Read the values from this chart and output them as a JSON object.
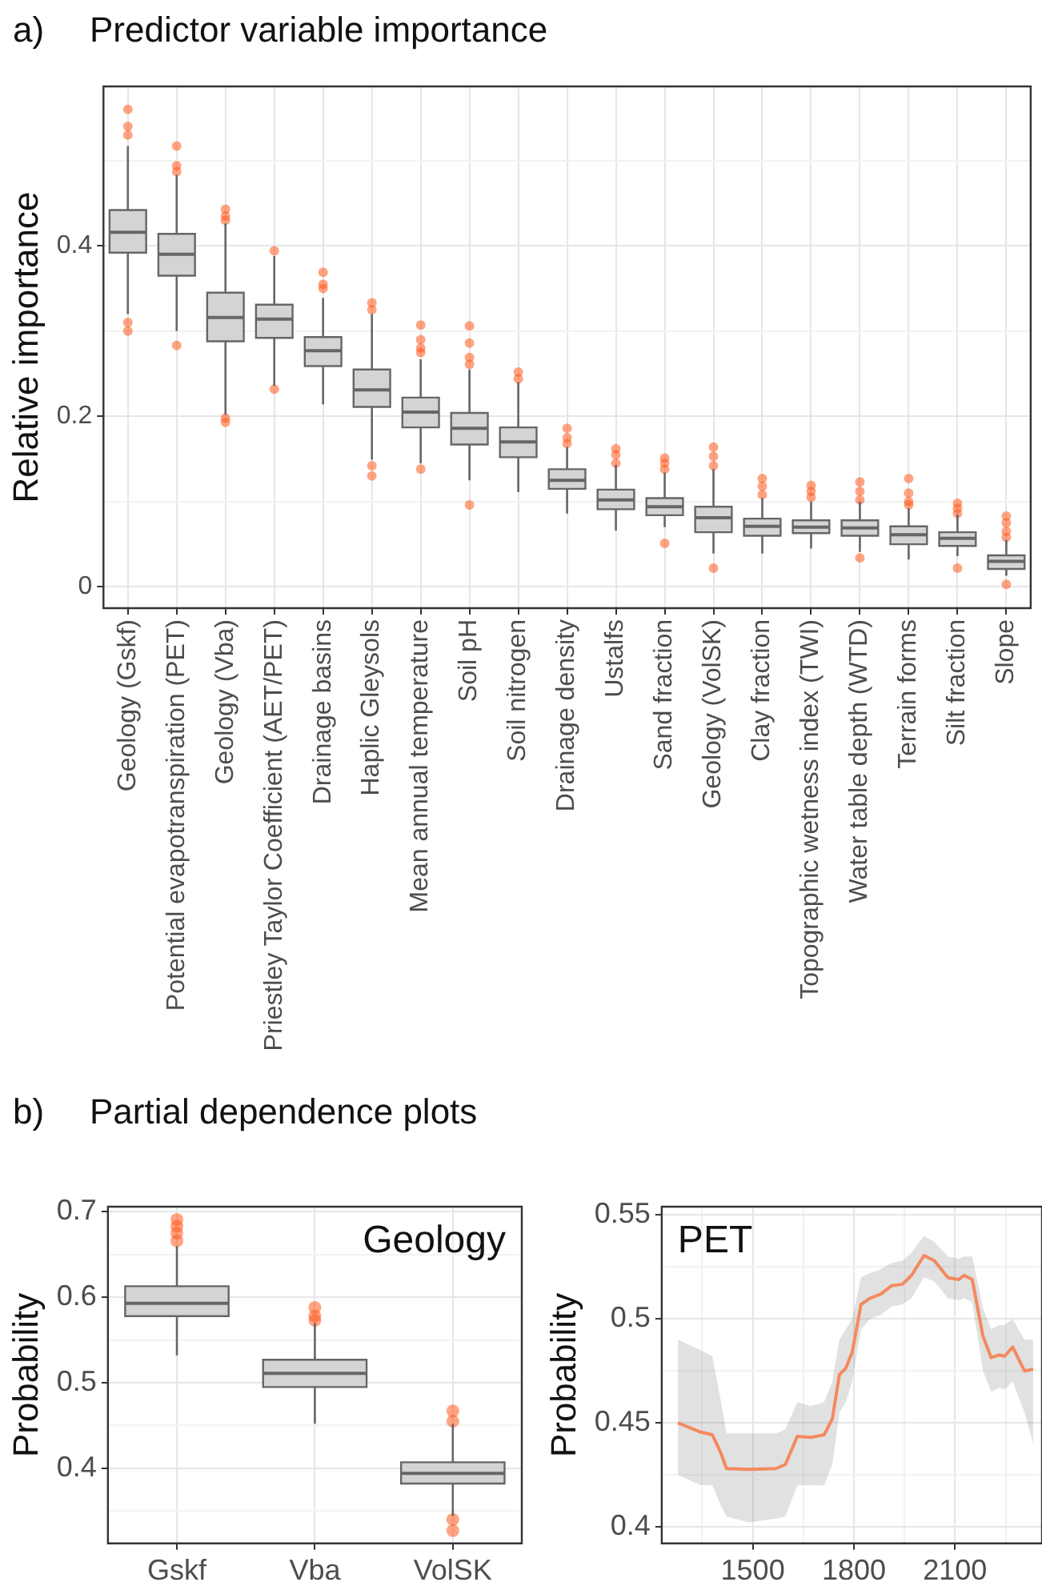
{
  "chart_data": [
    {
      "type": "box",
      "title": "Predictor variable importance",
      "annotations": [
        "a)"
      ],
      "ylabel": "Relative importance",
      "grid": true,
      "categories": [
        "Geology (Gskf)",
        "Potential evapotranspiration (PET)",
        "Geology (Vba)",
        "Priestley Taylor Coefficient (AET/PET)",
        "Drainage basins",
        "Haplic Gleysols",
        "Mean annual temperature",
        "Soil pH",
        "Soil nitrogen",
        "Drainage density",
        "Ustalfs",
        "Sand fraction",
        "Geology (VolSK)",
        "Clay fraction",
        "Topographic wetness index (TWI)",
        "Water table depth (WTD)",
        "Terrain forms",
        "Silt fraction",
        "Slope"
      ],
      "ylim": [
        -0.025,
        0.587
      ],
      "yticks": [
        0,
        {
          "value": 0.1,
          "label": null
        },
        0.2,
        {
          "value": 0.3,
          "label": null
        },
        0.4,
        {
          "value": 0.5,
          "label": null
        }
      ],
      "series": [
        {
          "color": "#d4d4d4",
          "boxes": [
            {
              "low": 0.32,
              "q1": 0.392,
              "median": 0.416,
              "q3": 0.442,
              "high": 0.517,
              "outliers": [
                0.56,
                0.54,
                0.53,
                0.31,
                0.3
              ]
            },
            {
              "low": 0.3,
              "q1": 0.365,
              "median": 0.39,
              "q3": 0.414,
              "high": 0.483,
              "outliers": [
                0.517,
                0.494,
                0.487,
                0.283
              ]
            },
            {
              "low": 0.202,
              "q1": 0.288,
              "median": 0.316,
              "q3": 0.345,
              "high": 0.426,
              "outliers": [
                0.443,
                0.435,
                0.43,
                0.198,
                0.193
              ]
            },
            {
              "low": 0.236,
              "q1": 0.292,
              "median": 0.314,
              "q3": 0.331,
              "high": 0.388,
              "outliers": [
                0.394,
                0.232
              ]
            },
            {
              "low": 0.214,
              "q1": 0.259,
              "median": 0.277,
              "q3": 0.293,
              "high": 0.339,
              "outliers": [
                0.369,
                0.355,
                0.35
              ]
            },
            {
              "low": 0.149,
              "q1": 0.211,
              "median": 0.231,
              "q3": 0.255,
              "high": 0.32,
              "outliers": [
                0.333,
                0.325,
                0.142,
                0.13
              ]
            },
            {
              "low": 0.145,
              "q1": 0.187,
              "median": 0.205,
              "q3": 0.222,
              "high": 0.267,
              "outliers": [
                0.307,
                0.29,
                0.28,
                0.275,
                0.138
              ]
            },
            {
              "low": 0.125,
              "q1": 0.167,
              "median": 0.186,
              "q3": 0.204,
              "high": 0.255,
              "outliers": [
                0.306,
                0.286,
                0.269,
                0.261,
                0.096
              ]
            },
            {
              "low": 0.111,
              "q1": 0.152,
              "median": 0.17,
              "q3": 0.187,
              "high": 0.24,
              "outliers": [
                0.252,
                0.244
              ]
            },
            {
              "low": 0.086,
              "q1": 0.115,
              "median": 0.125,
              "q3": 0.138,
              "high": 0.164,
              "outliers": [
                0.186,
                0.175,
                0.168
              ]
            },
            {
              "low": 0.066,
              "q1": 0.091,
              "median": 0.102,
              "q3": 0.114,
              "high": 0.143,
              "outliers": [
                0.162,
                0.155,
                0.145
              ]
            },
            {
              "low": 0.07,
              "q1": 0.084,
              "median": 0.094,
              "q3": 0.104,
              "high": 0.134,
              "outliers": [
                0.151,
                0.145,
                0.138,
                0.051
              ]
            },
            {
              "low": 0.039,
              "q1": 0.064,
              "median": 0.081,
              "q3": 0.094,
              "high": 0.138,
              "outliers": [
                0.164,
                0.153,
                0.142,
                0.022
              ]
            },
            {
              "low": 0.039,
              "q1": 0.06,
              "median": 0.071,
              "q3": 0.08,
              "high": 0.104,
              "outliers": [
                0.127,
                0.118,
                0.108
              ]
            },
            {
              "low": 0.045,
              "q1": 0.063,
              "median": 0.07,
              "q3": 0.078,
              "high": 0.1,
              "outliers": [
                0.119,
                0.112,
                0.105
              ]
            },
            {
              "low": 0.041,
              "q1": 0.06,
              "median": 0.069,
              "q3": 0.078,
              "high": 0.1,
              "outliers": [
                0.123,
                0.112,
                0.102,
                0.034
              ]
            },
            {
              "low": 0.032,
              "q1": 0.05,
              "median": 0.061,
              "q3": 0.071,
              "high": 0.092,
              "outliers": [
                0.127,
                0.11,
                0.1,
                0.096
              ]
            },
            {
              "low": 0.036,
              "q1": 0.048,
              "median": 0.057,
              "q3": 0.064,
              "high": 0.085,
              "outliers": [
                0.098,
                0.092,
                0.086,
                0.022
              ]
            },
            {
              "low": 0.013,
              "q1": 0.021,
              "median": 0.03,
              "q3": 0.037,
              "high": 0.055,
              "outliers": [
                0.083,
                0.075,
                0.065,
                0.058,
                0.003
              ]
            }
          ]
        }
      ]
    },
    {
      "type": "box",
      "title": "Partial dependence plots",
      "annotations": [
        "b)",
        "Geology"
      ],
      "ylabel": "Probability",
      "grid": true,
      "categories": [
        "Gskf",
        "Vba",
        "VolSK"
      ],
      "ylim": [
        0.312,
        0.706
      ],
      "yticks": [
        {
          "value": 0.35,
          "label": null
        },
        0.4,
        {
          "value": 0.45,
          "label": null
        },
        0.5,
        {
          "value": 0.55,
          "label": null
        },
        0.6,
        {
          "value": 0.65,
          "label": null
        },
        0.7
      ],
      "series": [
        {
          "color": "#d4d4d4",
          "boxes": [
            {
              "low": 0.532,
              "q1": 0.578,
              "median": 0.593,
              "q3": 0.613,
              "high": 0.66,
              "outliers": [
                0.691,
                0.683,
                0.675,
                0.666
              ]
            },
            {
              "low": 0.452,
              "q1": 0.495,
              "median": 0.511,
              "q3": 0.527,
              "high": 0.57,
              "outliers": [
                0.588,
                0.578,
                0.573
              ]
            },
            {
              "low": 0.344,
              "q1": 0.382,
              "median": 0.394,
              "q3": 0.407,
              "high": 0.452,
              "outliers": [
                0.467,
                0.455,
                0.34,
                0.327
              ]
            }
          ]
        }
      ]
    },
    {
      "type": "line",
      "annotations": [
        "PET"
      ],
      "ylabel": "Probability",
      "grid": true,
      "x": [
        1278,
        1345,
        1380,
        1406,
        1422,
        1489,
        1569,
        1597,
        1632,
        1672,
        1712,
        1736,
        1757,
        1776,
        1795,
        1821,
        1848,
        1880,
        1912,
        1944,
        1971,
        2008,
        2039,
        2079,
        2111,
        2127,
        2151,
        2183,
        2207,
        2231,
        2247,
        2271,
        2306,
        2332
      ],
      "xlim": [
        1230,
        2358
      ],
      "xticks": [
        {
          "value": 1350,
          "label": null
        },
        1500,
        {
          "value": 1650,
          "label": null
        },
        1800,
        {
          "value": 1950,
          "label": null
        },
        2100,
        {
          "value": 2250,
          "label": null
        }
      ],
      "ylim": [
        0.392,
        0.554
      ],
      "yticks": [
        0.4,
        {
          "value": 0.425,
          "label": null
        },
        0.45,
        {
          "value": 0.475,
          "label": null
        },
        0.5,
        {
          "value": 0.525,
          "label": null
        },
        0.55
      ],
      "series": [
        {
          "color": "#f4895f",
          "values": [
            0.45,
            0.4456,
            0.4443,
            0.4353,
            0.428,
            0.4276,
            0.428,
            0.43,
            0.4435,
            0.443,
            0.4443,
            0.452,
            0.4732,
            0.4763,
            0.484,
            0.507,
            0.51,
            0.512,
            0.516,
            0.5167,
            0.521,
            0.5305,
            0.528,
            0.5198,
            0.519,
            0.521,
            0.519,
            0.4916,
            0.4814,
            0.4827,
            0.482,
            0.4865,
            0.475,
            0.4758
          ],
          "lower": [
            0.425,
            0.42,
            0.42,
            0.41,
            0.405,
            0.402,
            0.404,
            0.405,
            0.42,
            0.42,
            0.42,
            0.43,
            0.455,
            0.46,
            0.47,
            0.495,
            0.5,
            0.502,
            0.506,
            0.507,
            0.51,
            0.52,
            0.518,
            0.51,
            0.509,
            0.51,
            0.508,
            0.475,
            0.465,
            0.467,
            0.466,
            0.47,
            0.455,
            0.44
          ],
          "upper": [
            0.49,
            0.485,
            0.482,
            0.46,
            0.445,
            0.445,
            0.445,
            0.447,
            0.46,
            0.458,
            0.46,
            0.47,
            0.49,
            0.495,
            0.5,
            0.52,
            0.522,
            0.524,
            0.527,
            0.528,
            0.532,
            0.54,
            0.537,
            0.53,
            0.529,
            0.53,
            0.53,
            0.505,
            0.495,
            0.497,
            0.497,
            0.5,
            0.49,
            0.49
          ]
        }
      ]
    }
  ]
}
